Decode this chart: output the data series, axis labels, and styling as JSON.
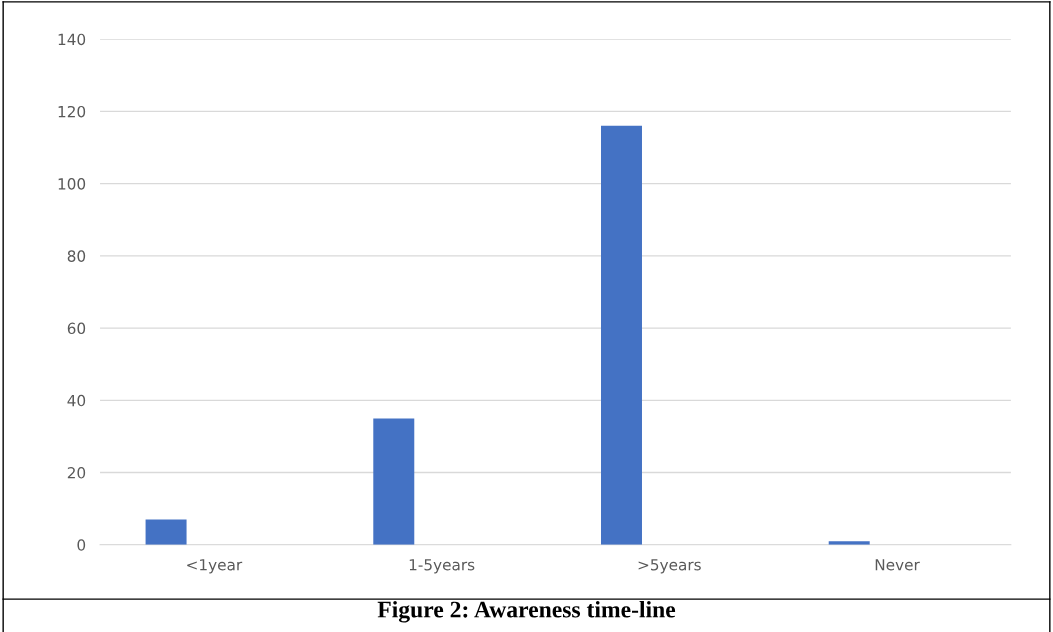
{
  "chart_data": {
    "type": "bar",
    "title": "Figure 2: Awareness time-line",
    "categories": [
      "<1year",
      "1-5years",
      ">5years",
      "Never"
    ],
    "values": [
      7,
      35,
      116,
      1
    ],
    "color": "#4472c4",
    "ylim": [
      0,
      140
    ],
    "yticks": [
      0,
      20,
      40,
      60,
      80,
      100,
      120,
      140
    ],
    "grid": "y"
  }
}
